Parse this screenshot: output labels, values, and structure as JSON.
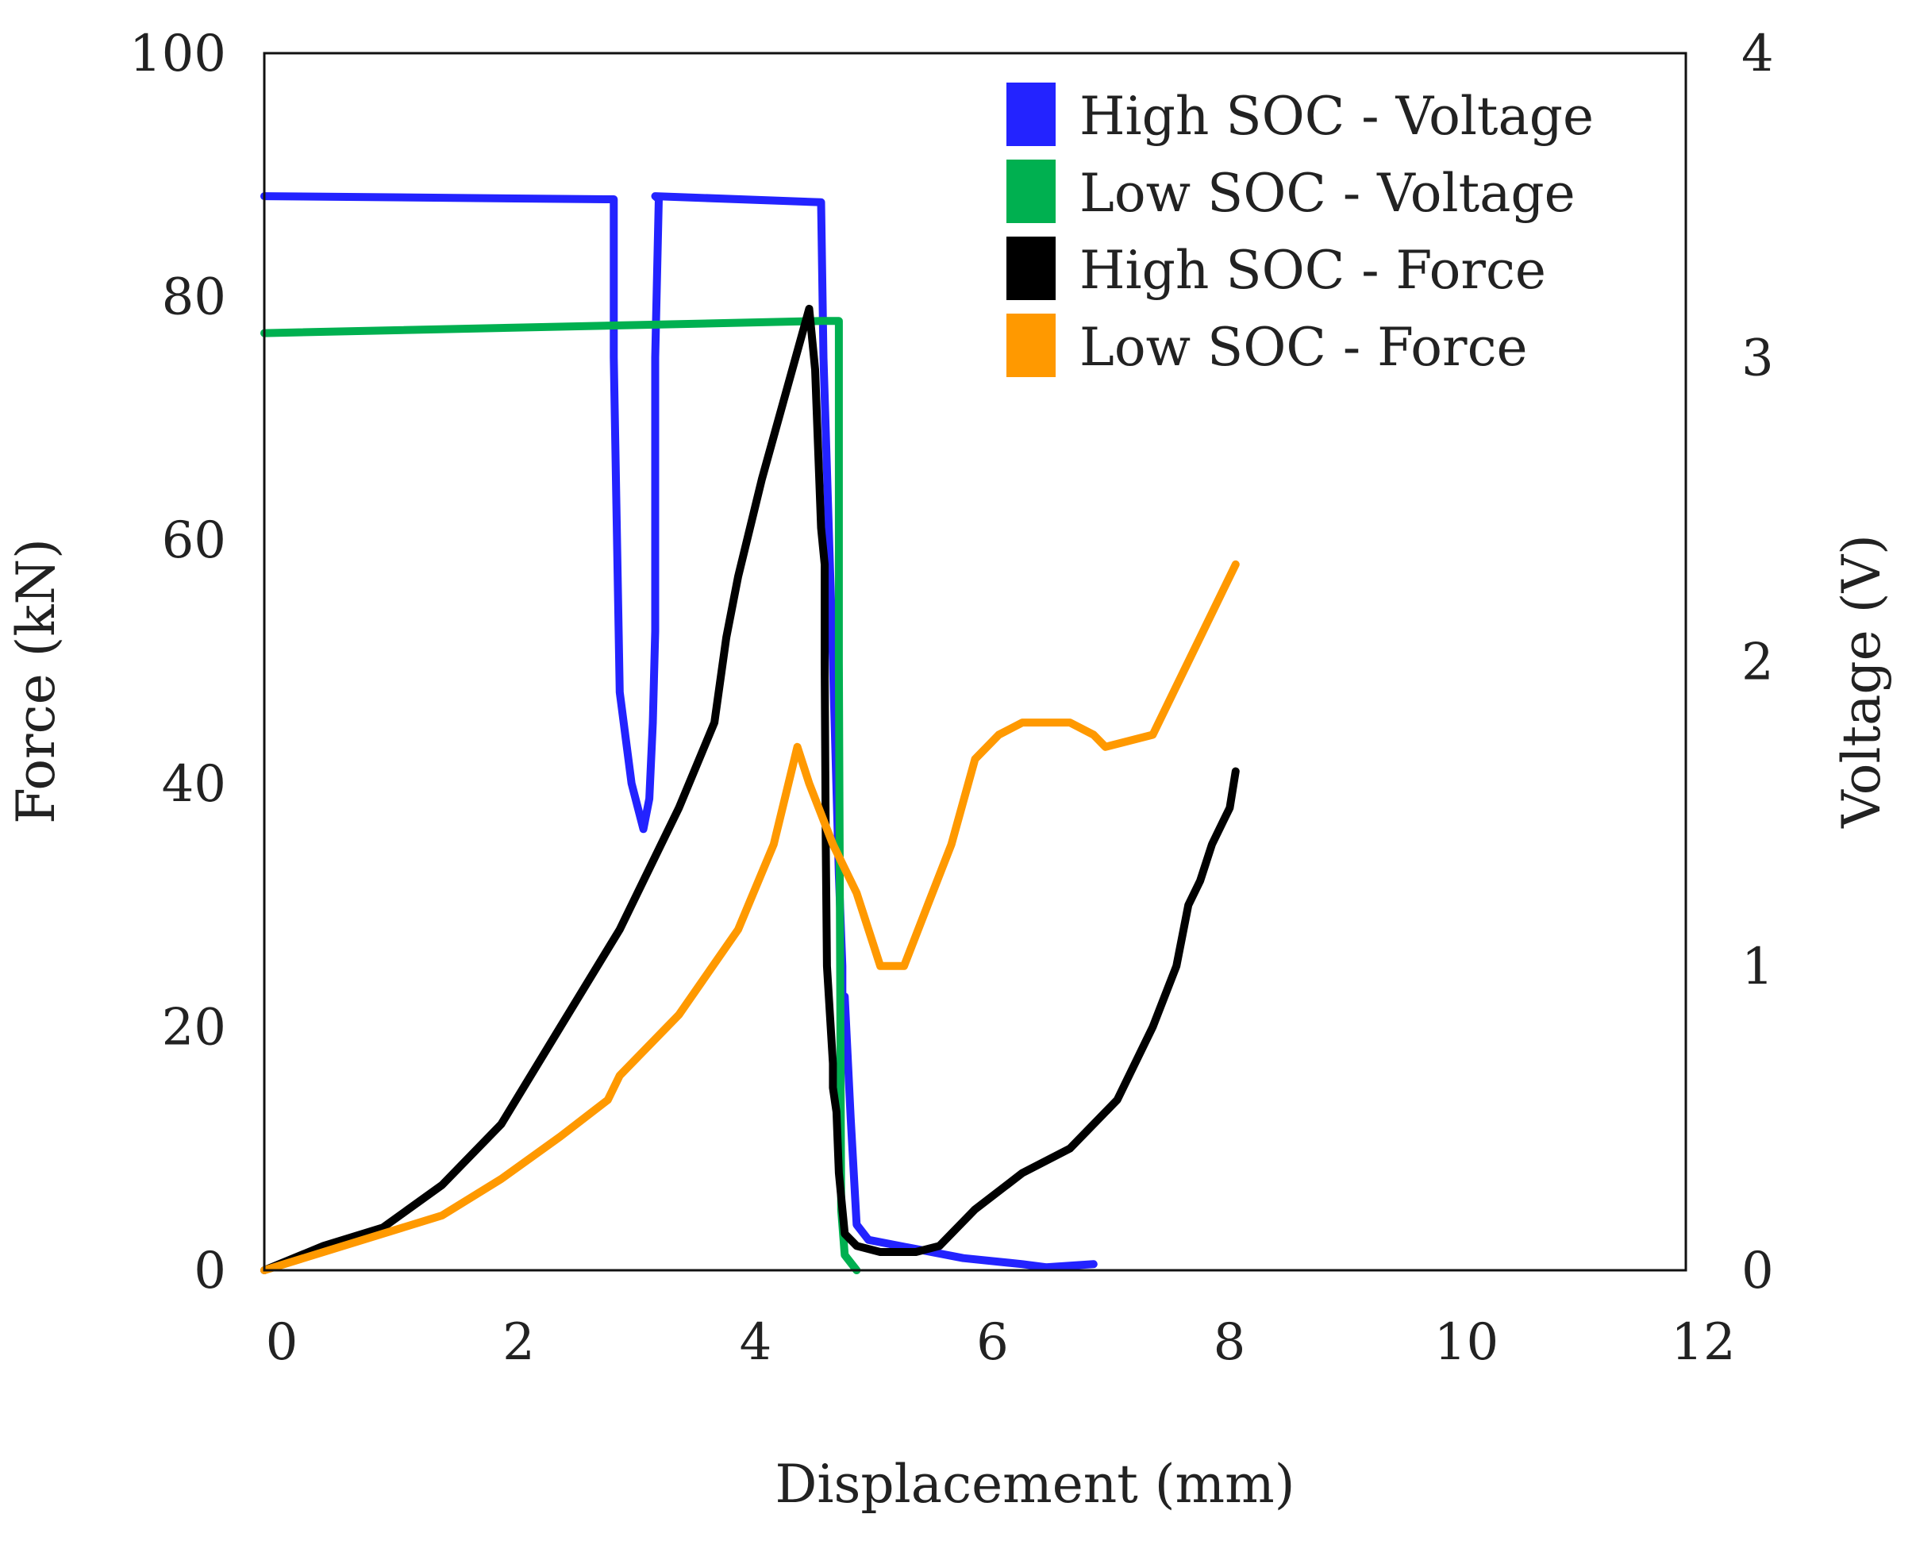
{
  "chart_data": {
    "type": "line",
    "title": "",
    "xlabel": "Displacement (mm)",
    "ylabel": "Force (kN)",
    "y2label": "Voltage (V)",
    "xlim": [
      0,
      12
    ],
    "ylim": [
      0,
      100
    ],
    "y2lim": [
      0,
      4
    ],
    "x_ticks": [
      0,
      2,
      4,
      6,
      8,
      10,
      12
    ],
    "x_tick_labels": [
      "0",
      "2",
      "4",
      "6",
      "8",
      "10",
      "12"
    ],
    "y_ticks": [
      0,
      20,
      40,
      60,
      80,
      100
    ],
    "y_tick_labels": [
      "0",
      "20",
      "40",
      "60",
      "80",
      "100"
    ],
    "y2_ticks": [
      0,
      1,
      2,
      3,
      4
    ],
    "y2_tick_labels": [
      "0",
      "1",
      "2",
      "3",
      "4"
    ],
    "grid": false,
    "legend_position": "top-right",
    "series": [
      {
        "name": "High SOC - Voltage",
        "axis": "right",
        "color": "#2323ff",
        "x": [
          0,
          2.9,
          2.95,
          2.95,
          3.0,
          3.1,
          3.2,
          3.25,
          3.28,
          3.3,
          3.3,
          3.33,
          3.3,
          4.7,
          4.72,
          4.8,
          4.85,
          4.88,
          4.88,
          4.9,
          4.95,
          5.0,
          5.1,
          5.5,
          5.9,
          6.4,
          6.6,
          7.0
        ],
        "y": [
          3.53,
          3.52,
          3.52,
          3.0,
          1.9,
          1.6,
          1.45,
          1.55,
          1.8,
          2.1,
          3.0,
          3.52,
          3.53,
          3.51,
          3.0,
          2.0,
          1.3,
          1.0,
          0.9,
          0.9,
          0.5,
          0.15,
          0.1,
          0.07,
          0.04,
          0.02,
          0.01,
          0.02
        ]
      },
      {
        "name": "Low SOC - Voltage",
        "axis": "right",
        "color": "#00b050",
        "x": [
          0,
          4.7,
          4.85,
          4.85,
          4.87,
          4.9,
          5.0
        ],
        "y": [
          3.08,
          3.12,
          3.12,
          2.0,
          0.2,
          0.05,
          0.0
        ]
      },
      {
        "name": "High SOC - Force",
        "axis": "left",
        "color": "#000000",
        "x": [
          0,
          0.5,
          1.0,
          1.5,
          2.0,
          2.5,
          3.0,
          3.5,
          3.8,
          3.9,
          4.0,
          4.2,
          4.4,
          4.6,
          4.65,
          4.7,
          4.73,
          4.73,
          4.74,
          4.75,
          4.8,
          4.8,
          4.83,
          4.85,
          4.9,
          5.0,
          5.2,
          5.5,
          5.7,
          6.0,
          6.4,
          6.8,
          7.2,
          7.5,
          7.7,
          7.8,
          7.9,
          8.0,
          8.1,
          8.15,
          8.2
        ],
        "y": [
          0,
          2,
          3.5,
          7,
          12,
          20,
          28,
          38,
          45,
          52,
          57,
          65,
          72,
          79,
          74,
          61,
          58,
          50,
          35,
          25,
          17,
          15,
          13,
          8,
          3,
          2,
          1.5,
          1.5,
          2,
          5,
          8,
          10,
          14,
          20,
          25,
          30,
          32,
          35,
          37,
          38,
          41
        ]
      },
      {
        "name": "Low SOC - Force",
        "axis": "left",
        "color": "#ff9900",
        "x": [
          0,
          0.5,
          1.0,
          1.5,
          2.0,
          2.5,
          2.9,
          3.0,
          3.5,
          4.0,
          4.3,
          4.5,
          4.6,
          4.8,
          5.0,
          5.2,
          5.4,
          5.6,
          5.8,
          6.0,
          6.2,
          6.4,
          6.6,
          6.8,
          7.0,
          7.1,
          7.5,
          7.7,
          7.9,
          8.0,
          8.1,
          8.2
        ],
        "y": [
          0,
          1.5,
          3,
          4.5,
          7.5,
          11,
          14,
          16,
          21,
          28,
          35,
          43,
          40,
          35,
          31,
          25,
          25,
          30,
          35,
          42,
          44,
          45,
          45,
          45,
          44,
          43,
          44,
          48,
          52,
          54,
          56,
          58
        ]
      }
    ]
  }
}
